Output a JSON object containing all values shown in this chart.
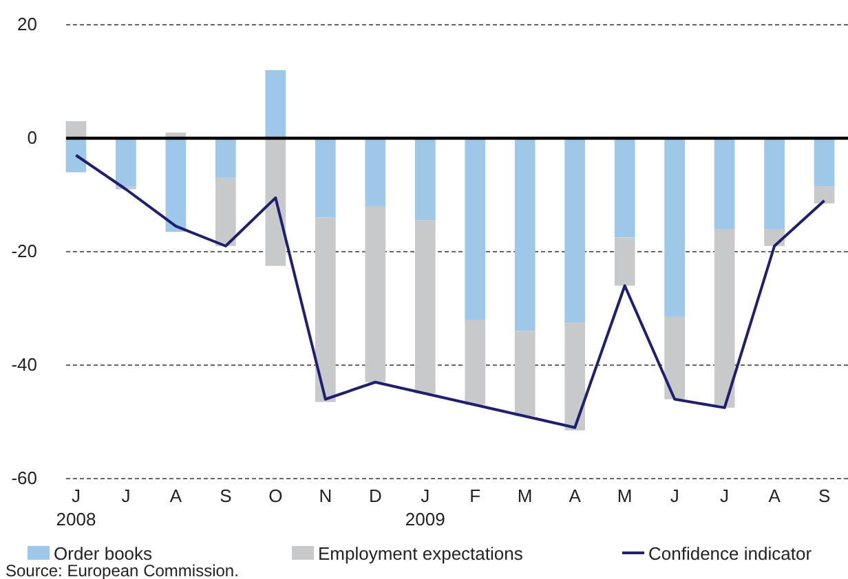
{
  "chart_data": {
    "type": "bar",
    "stacked": true,
    "categories": [
      "J\n2008",
      "J",
      "A",
      "S",
      "O",
      "N",
      "D",
      "J\n2009",
      "F",
      "M",
      "A",
      "M",
      "J",
      "J",
      "A",
      "S"
    ],
    "series": [
      {
        "name": "Order books",
        "color": "#9dc8ea",
        "values": [
          -6,
          -8.5,
          -16.5,
          -7,
          12,
          -14,
          -12,
          -14.5,
          -32,
          -34,
          -32.5,
          -17.5,
          -31.5,
          -16,
          -16,
          -8.5
        ]
      },
      {
        "name": "Employment expectations",
        "color": "#c8c9cb",
        "values": [
          3,
          -0.5,
          1,
          -12,
          -22.5,
          -32.5,
          -31,
          -30.5,
          -15,
          -15,
          -19,
          -8.5,
          -14.5,
          -31.5,
          -3,
          -3
        ]
      },
      {
        "name": "Confidence indicator",
        "type": "line",
        "color": "#1f1f6e",
        "values": [
          -3,
          -9,
          -15.5,
          -19,
          -10.5,
          -46,
          -43,
          -45,
          -47,
          -49,
          -51,
          -26,
          -46,
          -47.5,
          -19,
          -11
        ]
      }
    ],
    "ylim": [
      -60,
      20
    ],
    "yticks": [
      -60,
      -40,
      -20,
      0,
      20
    ],
    "grid": "y",
    "legend": "bottom",
    "ref_lines": [
      {
        "axis": "y",
        "value": 0,
        "color": "#000000",
        "line_style": "solid"
      }
    ],
    "annotations": [
      "Source: European Commission."
    ]
  }
}
